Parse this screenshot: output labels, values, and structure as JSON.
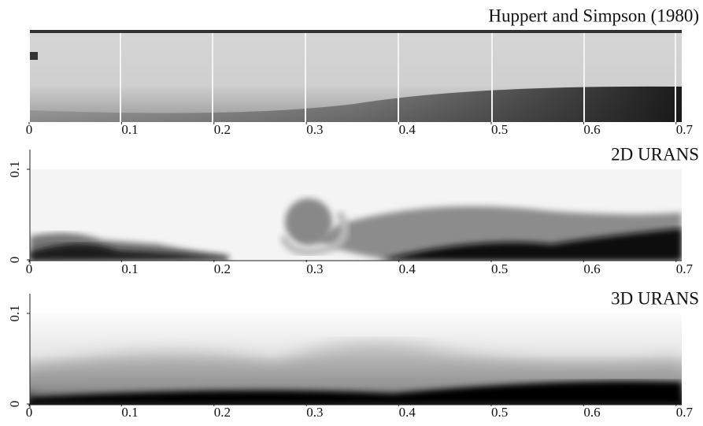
{
  "panels": [
    {
      "title": "Huppert and Simpson (1980)",
      "xticks": [
        0,
        0.1,
        0.2,
        0.3,
        0.4,
        0.5,
        0.6,
        0.7
      ]
    },
    {
      "title": "2D URANS",
      "xticks": [
        0,
        0.1,
        0.2,
        0.3,
        0.4,
        0.5,
        0.6,
        0.7
      ],
      "yticks": [
        0,
        0.1
      ]
    },
    {
      "title": "3D URANS",
      "xticks": [
        0,
        0.1,
        0.2,
        0.3,
        0.4,
        0.5,
        0.6,
        0.7
      ],
      "yticks": [
        0,
        0.1
      ]
    }
  ]
}
